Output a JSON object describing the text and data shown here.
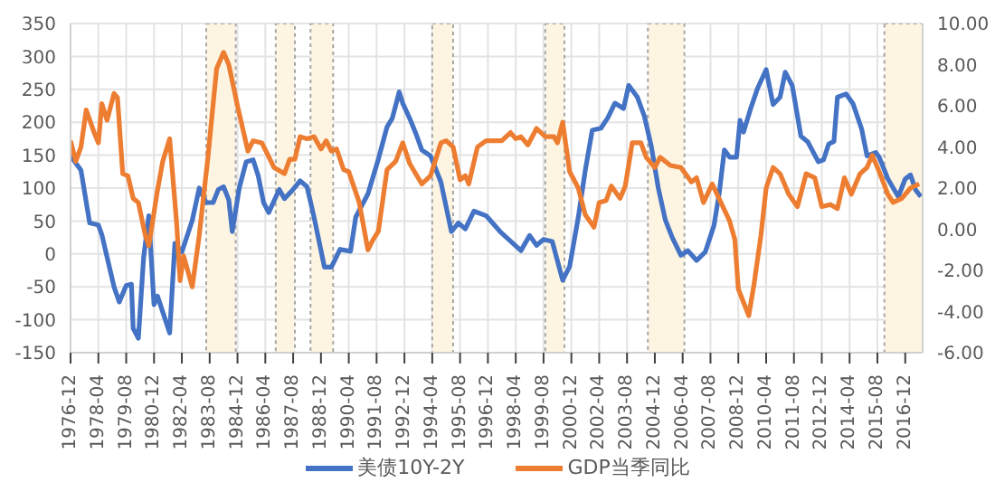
{
  "chart_data": {
    "type": "line",
    "xlim": [
      "1976-12",
      "2017-10"
    ],
    "xticks": [
      "1976-12",
      "1978-04",
      "1979-08",
      "1980-12",
      "1982-04",
      "1983-08",
      "1984-12",
      "1986-04",
      "1987-08",
      "1988-12",
      "1990-04",
      "1991-08",
      "1992-12",
      "1994-04",
      "1995-08",
      "1996-12",
      "1998-04",
      "1999-08",
      "2000-12",
      "2002-04",
      "2003-08",
      "2004-12",
      "2006-04",
      "2007-08",
      "2008-12",
      "2010-04",
      "2011-08",
      "2012-12",
      "2014-04",
      "2015-08",
      "2016-12"
    ],
    "ylim": [
      -150,
      350
    ],
    "yticks": [
      -150,
      -100,
      -50,
      0,
      50,
      100,
      150,
      200,
      250,
      300,
      350
    ],
    "y2lim": [
      -6,
      10
    ],
    "y2ticks": [
      {
        "value": -6,
        "label": "-6.00"
      },
      {
        "value": -4,
        "label": "-4.00"
      },
      {
        "value": -2,
        "label": "-2.00"
      },
      {
        "value": 0,
        "label": "0.00"
      },
      {
        "value": 2,
        "label": "2.00"
      },
      {
        "value": 4,
        "label": "4.00"
      },
      {
        "value": 6,
        "label": "6.00"
      },
      {
        "value": 8,
        "label": "8.00"
      },
      {
        "value": 10,
        "label": "10.00"
      }
    ],
    "grid": true,
    "legend": "bottom",
    "bands": [
      {
        "axis": "x",
        "from": "1983-06",
        "to": "1984-11",
        "color": "#fdf5e2"
      },
      {
        "axis": "x",
        "from": "1986-10",
        "to": "1987-09",
        "color": "#fdf5e2"
      },
      {
        "axis": "x",
        "from": "1988-06",
        "to": "1989-07",
        "color": "#fdf5e2"
      },
      {
        "axis": "x",
        "from": "1994-04",
        "to": "1995-04",
        "color": "#fdf5e2"
      },
      {
        "axis": "x",
        "from": "1999-09",
        "to": "2000-08",
        "color": "#fdf5e2"
      },
      {
        "axis": "x",
        "from": "2004-08",
        "to": "2006-05",
        "color": "#fdf5e2"
      },
      {
        "axis": "x",
        "from": "2015-12",
        "to": "2017-10",
        "color": "#fdf5e2"
      }
    ],
    "series": [
      {
        "name": "美债10Y-2Y",
        "color": "#4472c4",
        "x": [
          "1976-12",
          "1977-06",
          "1977-11",
          "1978-04",
          "1978-06",
          "1979-01",
          "1979-04",
          "1979-08",
          "1979-11",
          "1979-12",
          "1980-03",
          "1980-06",
          "1980-09",
          "1980-12",
          "1981-02",
          "1981-09",
          "1981-12",
          "1982-04",
          "1982-10",
          "1983-02",
          "1983-06",
          "1983-10",
          "1984-01",
          "1984-04",
          "1984-07",
          "1984-09",
          "1985-01",
          "1985-05",
          "1985-09",
          "1985-12",
          "1986-03",
          "1986-06",
          "1986-12",
          "1987-03",
          "1987-08",
          "1987-12",
          "1988-04",
          "1988-08",
          "1989-02",
          "1989-06",
          "1989-11",
          "1990-05",
          "1990-08",
          "1991-03",
          "1991-09",
          "1992-02",
          "1992-05",
          "1992-09",
          "1992-11",
          "1993-03",
          "1993-07",
          "1993-10",
          "1994-03",
          "1994-09",
          "1995-03",
          "1995-07",
          "1995-11",
          "1996-04",
          "1996-11",
          "1997-07",
          "1998-02",
          "1998-07",
          "1998-12",
          "1999-04",
          "1999-08",
          "2000-01",
          "2000-07",
          "2000-11",
          "2001-04",
          "2001-08",
          "2001-12",
          "2002-05",
          "2002-09",
          "2003-01",
          "2003-06",
          "2003-09",
          "2004-02",
          "2004-06",
          "2004-10",
          "2005-02",
          "2005-06",
          "2005-10",
          "2006-03",
          "2006-07",
          "2006-12",
          "2007-05",
          "2007-10",
          "2008-01",
          "2008-04",
          "2008-07",
          "2008-11",
          "2009-01",
          "2009-03",
          "2009-07",
          "2009-11",
          "2010-04",
          "2010-08",
          "2010-12",
          "2011-03",
          "2011-07",
          "2011-12",
          "2012-04",
          "2012-10",
          "2013-01",
          "2013-04",
          "2013-07",
          "2013-09",
          "2014-02",
          "2014-06",
          "2014-11",
          "2015-02",
          "2015-07",
          "2015-09",
          "2016-02",
          "2016-08",
          "2016-12",
          "2017-03",
          "2017-06",
          "2017-09"
        ],
        "values": [
          149,
          127,
          47,
          44,
          29,
          -50,
          -73,
          -48,
          -46,
          -113,
          -128,
          -6,
          58,
          -77,
          -64,
          -120,
          16,
          3,
          51,
          100,
          78,
          78,
          98,
          102,
          82,
          34,
          100,
          140,
          143,
          118,
          78,
          63,
          98,
          84,
          98,
          111,
          102,
          56,
          -20,
          -20,
          7,
          4,
          56,
          91,
          144,
          193,
          206,
          246,
          229,
          206,
          180,
          158,
          149,
          109,
          34,
          47,
          38,
          65,
          58,
          34,
          17,
          5,
          28,
          13,
          22,
          19,
          -40,
          -19,
          56,
          127,
          188,
          191,
          207,
          229,
          221,
          256,
          238,
          209,
          163,
          100,
          52,
          25,
          -2,
          5,
          -10,
          3,
          43,
          92,
          158,
          147,
          147,
          203,
          185,
          220,
          251,
          280,
          227,
          238,
          276,
          256,
          179,
          170,
          140,
          143,
          167,
          171,
          238,
          243,
          228,
          189,
          149,
          154,
          147,
          114,
          87,
          114,
          120,
          97,
          87
        ]
      },
      {
        "name": "GDP当季同比",
        "color": "#ed7d31",
        "axis": "y2",
        "x": [
          "1976-12",
          "1977-03",
          "1977-06",
          "1977-09",
          "1978-02",
          "1978-04",
          "1978-06",
          "1978-09",
          "1979-01",
          "1979-03",
          "1979-06",
          "1979-09",
          "1979-12",
          "1980-03",
          "1980-07",
          "1980-09",
          "1981-02",
          "1981-05",
          "1981-09",
          "1982-01",
          "1982-03",
          "1982-05",
          "1982-10",
          "1983-02",
          "1983-07",
          "1983-12",
          "1984-04",
          "1984-07",
          "1984-12",
          "1985-06",
          "1985-09",
          "1986-02",
          "1986-09",
          "1987-03",
          "1987-06",
          "1987-09",
          "1987-12",
          "1988-04",
          "1988-08",
          "1988-12",
          "1989-03",
          "1989-06",
          "1989-09",
          "1990-01",
          "1990-04",
          "1990-10",
          "1991-03",
          "1991-06",
          "1991-09",
          "1992-02",
          "1992-07",
          "1992-11",
          "1993-03",
          "1993-10",
          "1994-03",
          "1994-06",
          "1994-09",
          "1994-12",
          "1995-04",
          "1995-08",
          "1995-11",
          "1996-01",
          "1996-06",
          "1996-11",
          "1997-08",
          "1998-01",
          "1998-04",
          "1998-07",
          "1998-11",
          "1999-04",
          "1999-09",
          "2000-02",
          "2000-04",
          "2000-07",
          "2000-11",
          "2001-04",
          "2001-08",
          "2002-01",
          "2002-04",
          "2002-08",
          "2002-11",
          "2003-04",
          "2003-07",
          "2003-11",
          "2004-04",
          "2004-07",
          "2004-12",
          "2005-03",
          "2005-09",
          "2006-03",
          "2006-09",
          "2006-12",
          "2007-04",
          "2007-09",
          "2008-02",
          "2008-07",
          "2008-10",
          "2008-12",
          "2009-06",
          "2009-09",
          "2010-01",
          "2010-04",
          "2010-08",
          "2010-12",
          "2011-05",
          "2011-10",
          "2012-03",
          "2012-08",
          "2012-12",
          "2013-05",
          "2013-09",
          "2014-01",
          "2014-05",
          "2014-10",
          "2015-02",
          "2015-05",
          "2015-09",
          "2016-02",
          "2016-05",
          "2016-10",
          "2017-03",
          "2017-08"
        ],
        "values": [
          4.3,
          3.3,
          4.0,
          5.8,
          4.6,
          4.2,
          6.1,
          5.3,
          6.6,
          6.4,
          2.7,
          2.6,
          1.5,
          1.3,
          -0.3,
          -0.8,
          1.9,
          3.3,
          4.4,
          0.3,
          -2.5,
          -1.3,
          -2.8,
          -0.3,
          3.5,
          7.8,
          8.6,
          8.0,
          6.0,
          3.8,
          4.3,
          4.2,
          3.0,
          2.7,
          3.4,
          3.4,
          4.5,
          4.4,
          4.5,
          3.9,
          4.3,
          3.8,
          3.9,
          2.9,
          2.8,
          1.3,
          -1.0,
          -0.5,
          -0.1,
          2.9,
          3.3,
          4.2,
          3.2,
          2.2,
          2.6,
          3.4,
          4.2,
          4.3,
          4.0,
          2.4,
          2.6,
          2.2,
          4.0,
          4.3,
          4.3,
          4.7,
          4.4,
          4.5,
          4.1,
          4.9,
          4.5,
          4.5,
          4.2,
          5.2,
          2.8,
          2.0,
          0.7,
          0.1,
          1.3,
          1.4,
          2.1,
          1.5,
          2.1,
          4.2,
          4.2,
          3.5,
          3.0,
          3.5,
          3.1,
          3.0,
          2.3,
          2.5,
          1.3,
          2.2,
          1.3,
          0.4,
          -0.5,
          -2.9,
          -4.2,
          -2.7,
          -0.3,
          2.0,
          3.0,
          2.7,
          1.7,
          1.1,
          2.7,
          2.5,
          1.1,
          1.2,
          1.0,
          2.5,
          1.7,
          2.7,
          3.0,
          3.6,
          2.8,
          1.7,
          1.3,
          1.5,
          2.0,
          2.2
        ]
      }
    ]
  }
}
